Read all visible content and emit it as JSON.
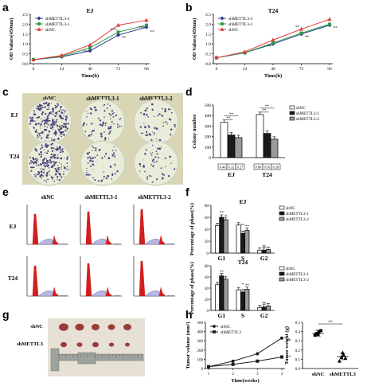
{
  "panel_labels": [
    "a",
    "b",
    "c",
    "d",
    "e",
    "f",
    "g",
    "h"
  ],
  "photo_colors": {
    "plate_bg": "#e9ecd9",
    "plate_rim": "#cfd3bf",
    "colony": "#4a3f7a",
    "plate_panel_bg": "#d8d6b5",
    "tumor_bg": "#e6e0d5",
    "tumor": "#9a3b3a",
    "ruler": "#9ea29c",
    "peak": "#d11f1f",
    "hist_fill": "#b9b6e0"
  },
  "panel_c": {
    "row_labels": [
      "EJ",
      "T24"
    ],
    "col_labels": [
      "shNC",
      "shMETTL3-1",
      "shMETTL3-2"
    ]
  },
  "panel_e": {
    "row_labels": [
      "EJ",
      "T24"
    ],
    "col_labels": [
      "shNC",
      "shMETTL3-1",
      "shMETTL3-2"
    ]
  },
  "panel_g": {
    "row_labels": [
      "shNC",
      "shMETTL3"
    ]
  },
  "chart_data": [
    {
      "id": "a",
      "type": "line",
      "title": "EJ",
      "xlabel": "Time(h)",
      "ylabel": "OD Values(450nm)",
      "x": [
        0,
        24,
        48,
        72,
        96
      ],
      "xticks": [
        "0",
        "24",
        "48",
        "72",
        "96"
      ],
      "yticks": [
        "0.0",
        "0.5",
        "1.0",
        "1.5",
        "2.0",
        "2.5"
      ],
      "ylim": [
        0,
        2.5
      ],
      "series": [
        {
          "name": "shMETTL3-2",
          "color": "#2a3d8f",
          "marker": "diamond",
          "values": [
            0.2,
            0.35,
            0.65,
            1.45,
            1.85
          ]
        },
        {
          "name": "shMETTL3-1",
          "color": "#2e9a4c",
          "marker": "square",
          "values": [
            0.2,
            0.38,
            0.8,
            1.6,
            1.95
          ]
        },
        {
          "name": "shNC",
          "color": "#e0403a",
          "marker": "triangle",
          "values": [
            0.2,
            0.42,
            0.95,
            1.95,
            2.2
          ]
        }
      ],
      "annotations": [
        "**",
        "**",
        "***",
        "**",
        "***"
      ]
    },
    {
      "id": "b",
      "type": "line",
      "title": "T24",
      "xlabel": "Time(h)",
      "ylabel": "OD Values(450nm)",
      "x": [
        0,
        24,
        48,
        72,
        96
      ],
      "xticks": [
        "0",
        "24",
        "48",
        "72",
        "96"
      ],
      "yticks": [
        "0.0",
        "0.5",
        "1.0",
        "1.5",
        "2.0",
        "2.5"
      ],
      "ylim": [
        0,
        2.5
      ],
      "series": [
        {
          "name": "shMETTL3-2",
          "color": "#2a3d8f",
          "marker": "diamond",
          "values": [
            0.3,
            0.55,
            1.0,
            1.5,
            1.95
          ]
        },
        {
          "name": "shMETTL3-1",
          "color": "#2e9a4c",
          "marker": "square",
          "values": [
            0.3,
            0.55,
            1.05,
            1.55,
            2.0
          ]
        },
        {
          "name": "shNC",
          "color": "#e0403a",
          "marker": "triangle",
          "values": [
            0.3,
            0.6,
            1.2,
            1.75,
            2.25
          ]
        }
      ],
      "annotations": [
        "**",
        "**",
        "**",
        "**"
      ]
    },
    {
      "id": "d",
      "type": "bar",
      "ylabel": "Colony number",
      "categories": [
        "EJ",
        "T24"
      ],
      "yticks": [
        "0",
        "100",
        "200",
        "300",
        "400",
        "500"
      ],
      "ylim": [
        0,
        500
      ],
      "series": [
        {
          "name": "shNC",
          "color": "#ffffff",
          "values": [
            335,
            410
          ]
        },
        {
          "name": "shMETTL3-1",
          "color": "#1a1a1a",
          "values": [
            215,
            230
          ]
        },
        {
          "name": "shMETTL3-2",
          "color": "#9a9a9a",
          "values": [
            190,
            175
          ]
        }
      ],
      "ratio_labels": [
        [
          "0.40",
          "0.32",
          "0.27"
        ],
        [
          "0.80",
          "0.56",
          "0.28"
        ]
      ],
      "annotations": [
        "**",
        "**",
        "**",
        "**"
      ]
    },
    {
      "id": "f1",
      "type": "bar",
      "title": "EJ",
      "ylabel": "Percentage of phase(%)",
      "categories": [
        "G1",
        "S",
        "G2"
      ],
      "yticks": [
        "0",
        "20",
        "40",
        "60",
        "80"
      ],
      "ylim": [
        0,
        80
      ],
      "series": [
        {
          "name": "shNC",
          "color": "#ffffff",
          "values": [
            46,
            47,
            5
          ]
        },
        {
          "name": "shMETTL3-1",
          "color": "#1a1a1a",
          "values": [
            60,
            33,
            5
          ]
        },
        {
          "name": "shMETTL3-2",
          "color": "#9a9a9a",
          "values": [
            56,
            38,
            6
          ]
        }
      ],
      "annotations": [
        "**",
        "*",
        "**",
        "**",
        "ns"
      ]
    },
    {
      "id": "f2",
      "type": "bar",
      "title": "T24",
      "ylabel": "Percentage of phase(%)",
      "categories": [
        "G1",
        "S",
        "G2"
      ],
      "yticks": [
        "0",
        "20",
        "40",
        "60",
        "80"
      ],
      "ylim": [
        0,
        80
      ],
      "series": [
        {
          "name": "shNC",
          "color": "#ffffff",
          "values": [
            46,
            37,
            5
          ]
        },
        {
          "name": "shMETTL3-1",
          "color": "#1a1a1a",
          "values": [
            62,
            33,
            6
          ]
        },
        {
          "name": "shMETTL3-2",
          "color": "#9a9a9a",
          "values": [
            56,
            38,
            8
          ]
        }
      ],
      "annotations": [
        "**",
        "*",
        "**",
        "ns"
      ]
    },
    {
      "id": "h1",
      "type": "line",
      "xlabel": "Time(weeks)",
      "ylabel": "Tumor volume (mm³)",
      "x": [
        1,
        2,
        3,
        4
      ],
      "xticks": [
        "1",
        "2",
        "3",
        "4"
      ],
      "yticks": [
        "0",
        "100",
        "200",
        "300",
        "400",
        "500"
      ],
      "ylim": [
        0,
        500
      ],
      "series": [
        {
          "name": "shNC",
          "color": "#1a1a1a",
          "marker": "circle",
          "values": [
            20,
            80,
            160,
            330
          ]
        },
        {
          "name": "shMETTL3",
          "color": "#1a1a1a",
          "marker": "square",
          "values": [
            20,
            45,
            80,
            125
          ]
        }
      ],
      "annotations": [
        "**",
        "**"
      ]
    },
    {
      "id": "h2",
      "type": "scatter",
      "ylabel": "Tumor weight (g)",
      "categories": [
        "shNC",
        "shMETTL3"
      ],
      "yticks": [
        "0.0",
        "0.1",
        "0.2",
        "0.3",
        "0.4",
        "0.5"
      ],
      "ylim": [
        0,
        0.5
      ],
      "series": [
        {
          "name": "shNC",
          "marker": "square",
          "values": [
            0.36,
            0.38,
            0.4,
            0.41,
            0.37
          ],
          "mean": 0.38
        },
        {
          "name": "shMETTL3",
          "marker": "triangle",
          "values": [
            0.08,
            0.12,
            0.15,
            0.11,
            0.17
          ],
          "mean": 0.13
        }
      ],
      "annotations": [
        "**"
      ]
    }
  ]
}
